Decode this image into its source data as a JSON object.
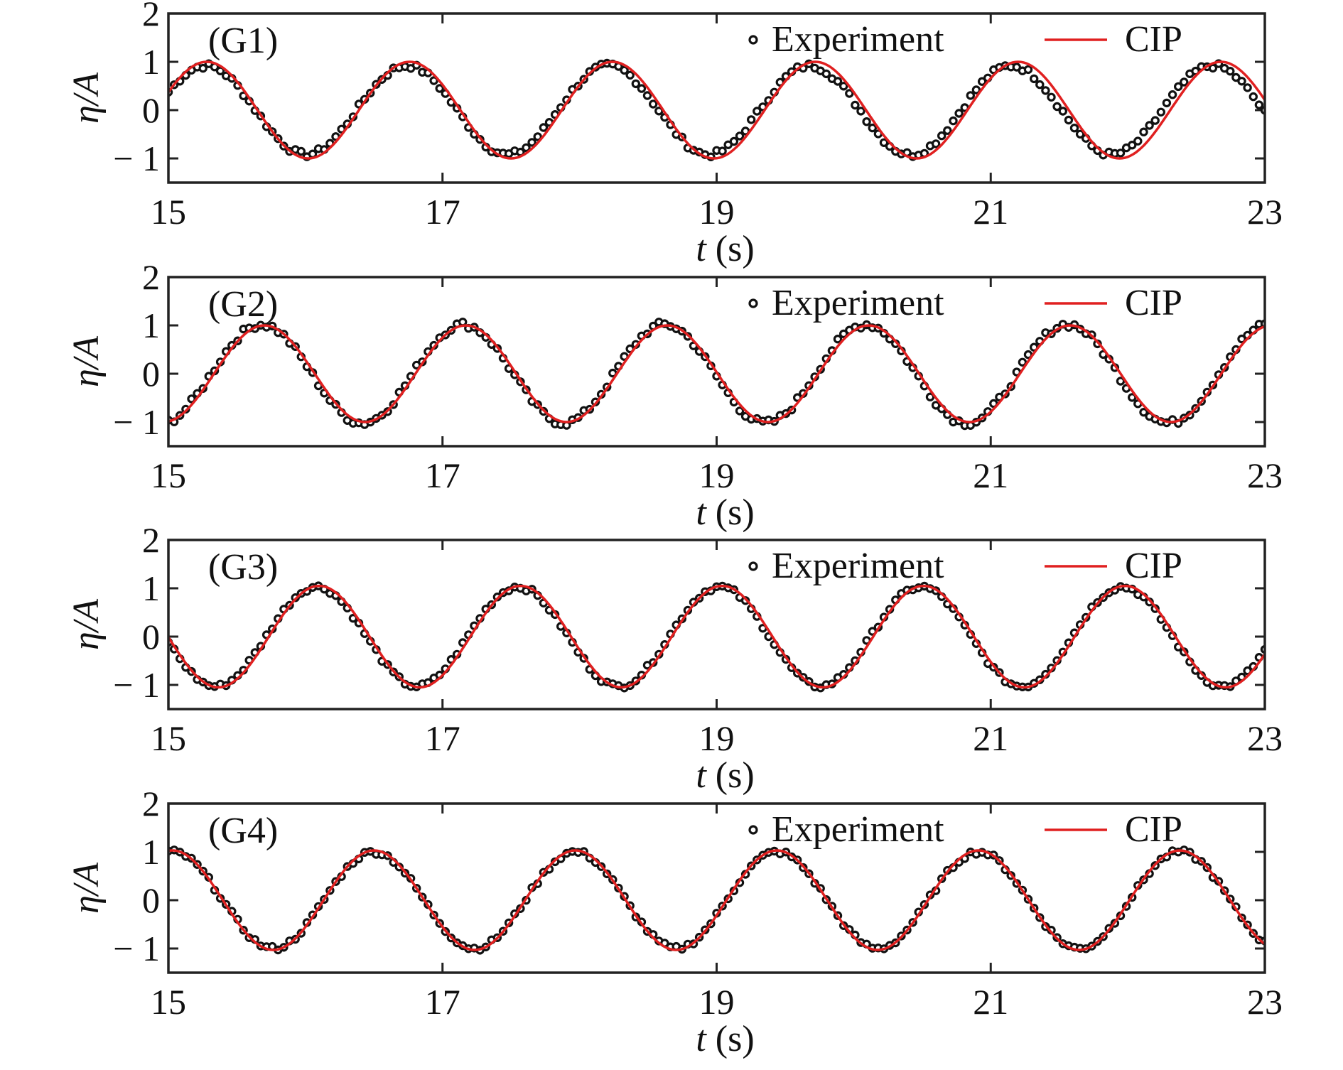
{
  "chart_data": [
    {
      "type": "line",
      "panel_label": "(G1)",
      "xlabel_var": "t",
      "xlabel_unit": "(s)",
      "ylabel": "η/A",
      "xlim": [
        15,
        23
      ],
      "ylim": [
        -1.5,
        2
      ],
      "xticks": [
        15,
        17,
        19,
        21,
        23
      ],
      "yticks": [
        1,
        0,
        -1,
        2
      ],
      "ytick_labels": [
        "1",
        "0",
        "− 1",
        "2"
      ],
      "legend": [
        "Experiment",
        "CIP"
      ],
      "legend_position": "top-right",
      "series": [
        {
          "name": "Experiment",
          "style": "markers",
          "color": "#111111",
          "period": 1.47,
          "phase_t": 15.27,
          "amp": 0.92,
          "jitter": 0.06
        },
        {
          "name": "CIP",
          "style": "line",
          "color": "#e02020",
          "period": 1.48,
          "phase_t": 15.28,
          "amp": 1.0
        }
      ],
      "sample_values": [
        {
          "t": 15.27,
          "experiment": 0.92,
          "cip": 1.0
        },
        {
          "t": 16.0,
          "experiment": -0.85,
          "cip": -0.97
        },
        {
          "t": 16.8,
          "experiment": 1.0,
          "cip": 0.98
        },
        {
          "t": 17.55,
          "experiment": -1.05,
          "cip": -1.0
        },
        {
          "t": 18.3,
          "experiment": 1.03,
          "cip": 1.0
        },
        {
          "t": 19.0,
          "experiment": -0.95,
          "cip": -1.0
        },
        {
          "t": 19.75,
          "experiment": 0.95,
          "cip": 0.96
        },
        {
          "t": 20.5,
          "experiment": -0.9,
          "cip": -0.98
        },
        {
          "t": 21.2,
          "experiment": 1.02,
          "cip": 1.0
        },
        {
          "t": 21.95,
          "experiment": -1.02,
          "cip": -1.0
        },
        {
          "t": 22.65,
          "experiment": 1.0,
          "cip": 1.0
        }
      ]
    },
    {
      "type": "line",
      "panel_label": "(G2)",
      "xlabel_var": "t",
      "xlabel_unit": "(s)",
      "ylabel": "η/A",
      "xlim": [
        15,
        23
      ],
      "ylim": [
        -1.5,
        2
      ],
      "xticks": [
        15,
        17,
        19,
        21,
        23
      ],
      "yticks": [
        1,
        0,
        -1,
        2
      ],
      "ytick_labels": [
        "1",
        "0",
        "− 1",
        "2"
      ],
      "legend": [
        "Experiment",
        "CIP"
      ],
      "legend_position": "top-right",
      "series": [
        {
          "name": "Experiment",
          "style": "markers",
          "color": "#111111",
          "period": 1.47,
          "phase_t": 15.68,
          "amp": 1.02,
          "jitter": 0.07
        },
        {
          "name": "CIP",
          "style": "line",
          "color": "#e02020",
          "period": 1.47,
          "phase_t": 15.7,
          "amp": 1.0
        }
      ],
      "sample_values": [
        {
          "t": 15.0,
          "experiment": -0.95,
          "cip": -1.15
        },
        {
          "t": 15.68,
          "experiment": 1.03,
          "cip": 1.05
        },
        {
          "t": 16.4,
          "experiment": -0.9,
          "cip": -1.0
        },
        {
          "t": 17.2,
          "experiment": 1.03,
          "cip": 0.92
        },
        {
          "t": 17.9,
          "experiment": -0.98,
          "cip": -1.0
        },
        {
          "t": 18.6,
          "experiment": 1.1,
          "cip": 1.0
        },
        {
          "t": 19.35,
          "experiment": -1.0,
          "cip": -1.0
        },
        {
          "t": 20.1,
          "experiment": 1.03,
          "cip": 0.98
        },
        {
          "t": 20.85,
          "experiment": -0.88,
          "cip": -0.98
        },
        {
          "t": 21.55,
          "experiment": 1.07,
          "cip": 0.98
        },
        {
          "t": 22.3,
          "experiment": -0.98,
          "cip": -1.0
        },
        {
          "t": 23.0,
          "experiment": 1.1,
          "cip": 0.98
        }
      ]
    },
    {
      "type": "line",
      "panel_label": "(G3)",
      "xlabel_var": "t",
      "xlabel_unit": "(s)",
      "ylabel": "η/A",
      "xlim": [
        15,
        23
      ],
      "ylim": [
        -1.5,
        2
      ],
      "xticks": [
        15,
        17,
        19,
        21,
        23
      ],
      "yticks": [
        1,
        0,
        -1,
        2
      ],
      "ytick_labels": [
        "1",
        "0",
        "− 1",
        "2"
      ],
      "legend": [
        "Experiment",
        "CIP"
      ],
      "legend_position": "top-right",
      "series": [
        {
          "name": "Experiment",
          "style": "markers",
          "color": "#111111",
          "period": 1.47,
          "phase_t": 16.08,
          "amp": 1.03,
          "jitter": 0.05
        },
        {
          "name": "CIP",
          "style": "line",
          "color": "#e02020",
          "period": 1.47,
          "phase_t": 16.1,
          "amp": 1.05
        }
      ],
      "sample_values": [
        {
          "t": 15.0,
          "experiment": -0.1,
          "cip": -0.05
        },
        {
          "t": 15.35,
          "experiment": -1.0,
          "cip": -1.08
        },
        {
          "t": 16.08,
          "experiment": 1.08,
          "cip": 1.05
        },
        {
          "t": 16.8,
          "experiment": -0.88,
          "cip": -0.95
        },
        {
          "t": 17.55,
          "experiment": 1.0,
          "cip": 0.98
        },
        {
          "t": 18.3,
          "experiment": -1.0,
          "cip": -0.95
        },
        {
          "t": 19.02,
          "experiment": 1.08,
          "cip": 1.0
        },
        {
          "t": 19.75,
          "experiment": -0.92,
          "cip": -1.0
        },
        {
          "t": 20.5,
          "experiment": 1.05,
          "cip": 1.0
        },
        {
          "t": 21.25,
          "experiment": -1.02,
          "cip": -0.98
        },
        {
          "t": 21.95,
          "experiment": 1.03,
          "cip": 1.0
        },
        {
          "t": 22.7,
          "experiment": -0.95,
          "cip": -0.95
        },
        {
          "t": 23.0,
          "experiment": -0.3,
          "cip": -0.3
        }
      ]
    },
    {
      "type": "line",
      "panel_label": "(G4)",
      "xlabel_var": "t",
      "xlabel_unit": "(s)",
      "ylabel": "η/A",
      "xlim": [
        15,
        23
      ],
      "ylim": [
        -1.5,
        2
      ],
      "xticks": [
        15,
        17,
        19,
        21,
        23
      ],
      "yticks": [
        1,
        0,
        -1,
        2
      ],
      "ytick_labels": [
        "1",
        "0",
        "− 1",
        "2"
      ],
      "legend": [
        "Experiment",
        "CIP"
      ],
      "legend_position": "top-right",
      "series": [
        {
          "name": "Experiment",
          "style": "markers",
          "color": "#111111",
          "period": 1.47,
          "phase_t": 16.5,
          "amp": 1.0,
          "jitter": 0.05
        },
        {
          "name": "CIP",
          "style": "line",
          "color": "#e02020",
          "period": 1.47,
          "phase_t": 16.5,
          "amp": 1.03
        }
      ],
      "sample_values": [
        {
          "t": 15.0,
          "experiment": 0.97,
          "cip": 1.0
        },
        {
          "t": 15.78,
          "experiment": -0.95,
          "cip": -1.05
        },
        {
          "t": 16.5,
          "experiment": 1.05,
          "cip": 1.1
        },
        {
          "t": 17.2,
          "experiment": -1.02,
          "cip": -1.03
        },
        {
          "t": 17.95,
          "experiment": 1.0,
          "cip": 0.98
        },
        {
          "t": 18.7,
          "experiment": -0.97,
          "cip": -1.0
        },
        {
          "t": 19.42,
          "experiment": 1.05,
          "cip": 1.0
        },
        {
          "t": 20.15,
          "experiment": -0.98,
          "cip": -1.0
        },
        {
          "t": 20.88,
          "experiment": 1.0,
          "cip": 1.0
        },
        {
          "t": 21.62,
          "experiment": -1.02,
          "cip": -1.0
        },
        {
          "t": 22.35,
          "experiment": 1.05,
          "cip": 1.0
        },
        {
          "t": 23.0,
          "experiment": -0.95,
          "cip": -0.97
        }
      ]
    }
  ]
}
